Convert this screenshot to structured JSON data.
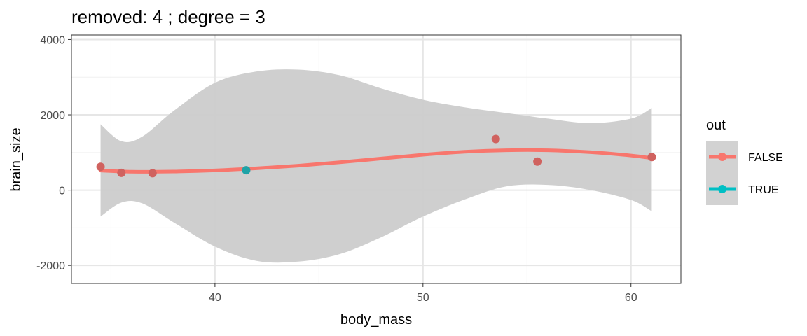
{
  "chart_data": {
    "type": "scatter",
    "title": "removed: 4  ;  degree = 3",
    "xlabel": "body_mass",
    "ylabel": "brain_size",
    "xlim": [
      33.1,
      62.4
    ],
    "ylim": [
      -2480,
      4120
    ],
    "x_ticks": [
      40,
      50,
      60
    ],
    "y_ticks": [
      -2000,
      0,
      2000,
      4000
    ],
    "x_tick_labels": [
      "40",
      "50",
      "60"
    ],
    "y_tick_labels": [
      "-2000",
      "0",
      "2000",
      "4000"
    ],
    "grid": true,
    "legend": {
      "title": "out",
      "position": "right",
      "entries": [
        {
          "label": "FALSE",
          "color": "#F8766D"
        },
        {
          "label": "TRUE",
          "color": "#00BFC4"
        }
      ]
    },
    "points": [
      {
        "x": 34.5,
        "y": 620,
        "out": "FALSE"
      },
      {
        "x": 35.5,
        "y": 460,
        "out": "FALSE"
      },
      {
        "x": 37.0,
        "y": 450,
        "out": "FALSE"
      },
      {
        "x": 41.5,
        "y": 530,
        "out": "TRUE"
      },
      {
        "x": 53.5,
        "y": 1360,
        "out": "FALSE"
      },
      {
        "x": 55.5,
        "y": 760,
        "out": "FALSE"
      },
      {
        "x": 61.0,
        "y": 880,
        "out": "FALSE"
      }
    ],
    "fit": {
      "degree": 3,
      "color": "#F8766D",
      "x": [
        34.5,
        36,
        38,
        40,
        42,
        44,
        46,
        48,
        50,
        52,
        54,
        56,
        58,
        60,
        61
      ],
      "y": [
        520,
        490,
        495,
        525,
        580,
        650,
        740,
        840,
        940,
        1020,
        1060,
        1060,
        1010,
        920,
        850
      ]
    },
    "ribbon": {
      "color": "#cccccc",
      "x": [
        34.5,
        35.5,
        36.5,
        38,
        40,
        42,
        44,
        46,
        48,
        50,
        52,
        54,
        56,
        58,
        60,
        61
      ],
      "upper": [
        1750,
        1300,
        1420,
        2100,
        2850,
        3150,
        3200,
        3050,
        2700,
        2400,
        2200,
        2050,
        1900,
        1780,
        1900,
        2180
      ],
      "lower": [
        -700,
        -330,
        -350,
        -850,
        -1500,
        -1880,
        -1900,
        -1700,
        -1250,
        -700,
        -250,
        100,
        140,
        10,
        -260,
        -560
      ]
    }
  }
}
